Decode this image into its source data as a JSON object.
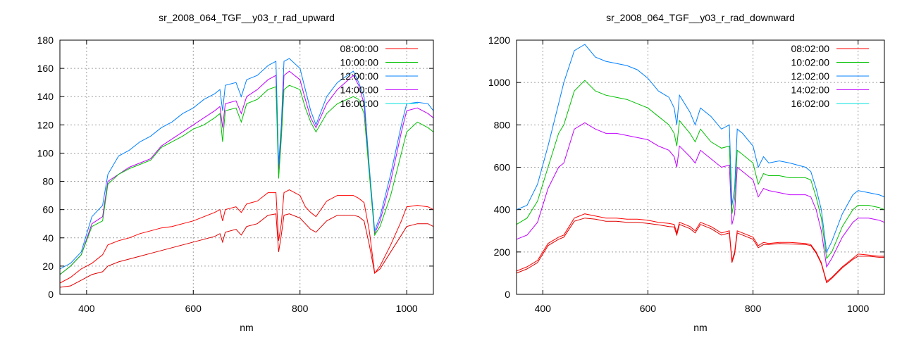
{
  "chart_data": [
    {
      "type": "line",
      "title": "sr_2008_064_TGF__y03_r_rad_upward",
      "xlabel": "nm",
      "ylabel": "",
      "xlim": [
        350,
        1050
      ],
      "ylim": [
        0,
        180
      ],
      "xticks": [
        400,
        600,
        800,
        1000
      ],
      "yticks": [
        0,
        20,
        40,
        60,
        80,
        100,
        120,
        140,
        160,
        180
      ],
      "grid": true,
      "legend": "top-right",
      "x": [
        350,
        370,
        390,
        410,
        430,
        440,
        460,
        480,
        500,
        520,
        540,
        560,
        580,
        600,
        620,
        640,
        650,
        655,
        660,
        680,
        690,
        700,
        720,
        740,
        755,
        760,
        765,
        770,
        780,
        800,
        810,
        820,
        830,
        850,
        870,
        900,
        910,
        920,
        930,
        940,
        950,
        970,
        990,
        1000,
        1020,
        1040,
        1050
      ],
      "series": [
        {
          "name": "08:00:00",
          "color": "#ff0000",
          "line_color": "#ff0000",
          "values": [
            8,
            12,
            18,
            22,
            28,
            35,
            38,
            40,
            43,
            45,
            47,
            48,
            50,
            52,
            55,
            58,
            60,
            52,
            60,
            62,
            58,
            64,
            66,
            72,
            72,
            38,
            50,
            72,
            74,
            70,
            62,
            58,
            55,
            66,
            70,
            70,
            68,
            65,
            45,
            15,
            20,
            35,
            52,
            62,
            63,
            62,
            60
          ]
        },
        {
          "name": "10:00:00",
          "color": "#00c000",
          "line_color": "#00c000",
          "values": [
            14,
            20,
            28,
            48,
            52,
            78,
            85,
            89,
            92,
            95,
            104,
            108,
            112,
            117,
            120,
            125,
            128,
            108,
            130,
            132,
            122,
            135,
            138,
            145,
            147,
            82,
            110,
            145,
            148,
            145,
            132,
            122,
            115,
            128,
            135,
            140,
            138,
            128,
            85,
            42,
            48,
            70,
            100,
            115,
            122,
            118,
            115
          ]
        },
        {
          "name": "12:00:00",
          "color": "#0080ff",
          "line_color": "#0080ff",
          "values": [
            18,
            22,
            30,
            55,
            63,
            85,
            98,
            102,
            108,
            112,
            118,
            122,
            128,
            132,
            138,
            142,
            145,
            130,
            148,
            150,
            140,
            152,
            155,
            162,
            165,
            92,
            120,
            165,
            167,
            160,
            145,
            130,
            120,
            140,
            150,
            158,
            150,
            140,
            90,
            45,
            55,
            85,
            120,
            135,
            136,
            135,
            130
          ]
        },
        {
          "name": "14:00:00",
          "color": "#c000ff",
          "line_color": "#c000ff",
          "values": [
            14,
            20,
            28,
            50,
            55,
            80,
            85,
            90,
            93,
            96,
            105,
            110,
            115,
            120,
            125,
            130,
            133,
            118,
            135,
            137,
            128,
            140,
            145,
            152,
            155,
            88,
            115,
            155,
            158,
            152,
            138,
            125,
            118,
            135,
            145,
            155,
            148,
            135,
            88,
            43,
            52,
            80,
            115,
            130,
            132,
            128,
            125
          ]
        },
        {
          "name": "16:00:00",
          "color": "#00e0e0",
          "line_color": "#e00000",
          "values": [
            5,
            6,
            10,
            14,
            16,
            20,
            23,
            25,
            27,
            29,
            31,
            33,
            35,
            37,
            39,
            41,
            43,
            37,
            44,
            46,
            42,
            48,
            50,
            56,
            57,
            30,
            42,
            56,
            57,
            54,
            50,
            46,
            44,
            52,
            56,
            56,
            55,
            52,
            35,
            15,
            18,
            30,
            42,
            48,
            50,
            50,
            48
          ]
        }
      ]
    },
    {
      "type": "line",
      "title": "sr_2008_064_TGF__y03_r_rad_downward",
      "xlabel": "nm",
      "ylabel": "",
      "xlim": [
        350,
        1050
      ],
      "ylim": [
        0,
        1200
      ],
      "xticks": [
        400,
        600,
        800,
        1000
      ],
      "yticks": [
        0,
        200,
        400,
        600,
        800,
        1000,
        1200
      ],
      "grid": true,
      "legend": "top-right",
      "x": [
        350,
        370,
        390,
        410,
        430,
        440,
        460,
        480,
        500,
        520,
        540,
        560,
        580,
        600,
        620,
        640,
        650,
        655,
        660,
        680,
        690,
        700,
        720,
        740,
        755,
        760,
        765,
        770,
        780,
        800,
        810,
        820,
        830,
        850,
        870,
        900,
        910,
        920,
        930,
        940,
        950,
        970,
        990,
        1000,
        1020,
        1040,
        1050
      ],
      "series": [
        {
          "name": "08:02:00",
          "color": "#ff0000",
          "line_color": "#ff0000",
          "values": [
            110,
            130,
            160,
            240,
            270,
            280,
            360,
            380,
            370,
            360,
            360,
            355,
            355,
            350,
            340,
            335,
            330,
            290,
            340,
            320,
            300,
            340,
            320,
            290,
            300,
            160,
            200,
            300,
            290,
            270,
            230,
            245,
            240,
            245,
            245,
            240,
            235,
            200,
            150,
            60,
            80,
            130,
            170,
            190,
            185,
            180,
            180
          ]
        },
        {
          "name": "10:02:00",
          "color": "#00c000",
          "line_color": "#00c000",
          "values": [
            330,
            360,
            440,
            600,
            760,
            800,
            960,
            1010,
            960,
            940,
            930,
            920,
            900,
            880,
            840,
            800,
            760,
            700,
            820,
            760,
            720,
            780,
            720,
            690,
            700,
            380,
            450,
            680,
            660,
            620,
            520,
            570,
            560,
            560,
            550,
            550,
            540,
            460,
            360,
            170,
            200,
            320,
            400,
            420,
            420,
            410,
            400
          ]
        },
        {
          "name": "12:02:00",
          "color": "#0080ff",
          "line_color": "#0080ff",
          "values": [
            400,
            420,
            520,
            700,
            900,
            1000,
            1150,
            1180,
            1120,
            1100,
            1090,
            1080,
            1060,
            1020,
            960,
            930,
            880,
            800,
            940,
            860,
            800,
            880,
            840,
            780,
            800,
            420,
            500,
            780,
            760,
            700,
            600,
            650,
            620,
            630,
            620,
            600,
            580,
            500,
            400,
            200,
            250,
            380,
            470,
            490,
            480,
            470,
            460
          ]
        },
        {
          "name": "14:02:00",
          "color": "#c000ff",
          "line_color": "#c000ff",
          "values": [
            260,
            280,
            340,
            500,
            600,
            620,
            780,
            810,
            780,
            760,
            760,
            750,
            740,
            730,
            700,
            680,
            650,
            600,
            700,
            650,
            620,
            680,
            640,
            600,
            610,
            330,
            380,
            600,
            580,
            540,
            460,
            500,
            490,
            480,
            470,
            470,
            460,
            400,
            300,
            130,
            170,
            270,
            340,
            360,
            360,
            350,
            340
          ]
        },
        {
          "name": "16:02:00",
          "color": "#00e0e0",
          "line_color": "#e00000",
          "values": [
            100,
            120,
            150,
            230,
            260,
            270,
            345,
            360,
            355,
            345,
            345,
            340,
            340,
            335,
            328,
            320,
            318,
            280,
            330,
            310,
            290,
            330,
            310,
            280,
            290,
            150,
            190,
            290,
            280,
            260,
            220,
            235,
            235,
            240,
            238,
            235,
            230,
            195,
            145,
            55,
            75,
            125,
            165,
            180,
            180,
            175,
            175
          ]
        }
      ]
    }
  ]
}
